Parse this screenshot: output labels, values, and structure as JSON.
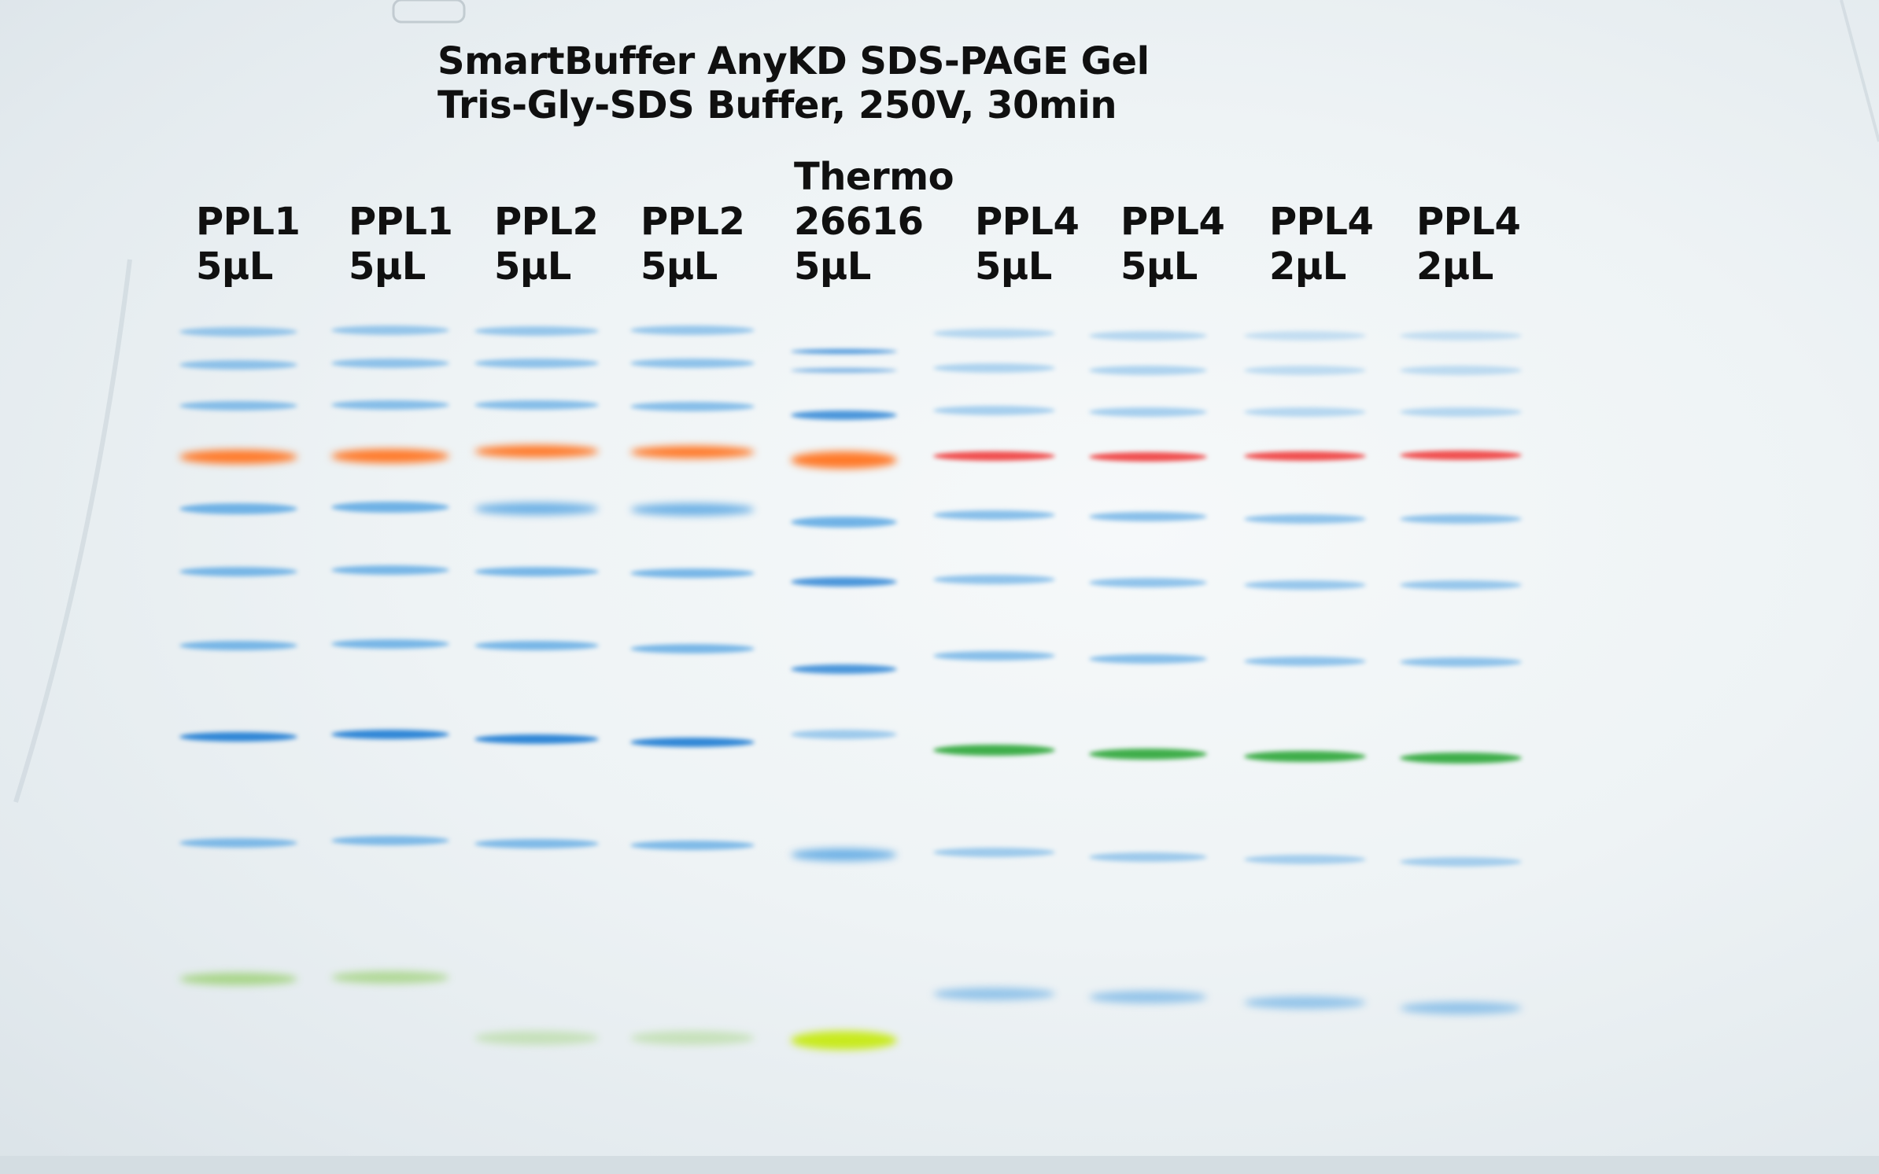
{
  "title": {
    "line1": "SmartBuffer AnyKD SDS-PAGE Gel",
    "line2": "Tris-Gly-SDS Buffer, 250V, 30min"
  },
  "lanes": [
    {
      "name": "PPL1",
      "volume": "5µL"
    },
    {
      "name": "PPL1",
      "volume": "5µL"
    },
    {
      "name": "PPL2",
      "volume": "5µL"
    },
    {
      "name": "PPL2",
      "volume": "5µL"
    },
    {
      "name": "Thermo",
      "catalog": "26616",
      "volume": "5µL"
    },
    {
      "name": "PPL4",
      "volume": "5µL"
    },
    {
      "name": "PPL4",
      "volume": "5µL"
    },
    {
      "name": "PPL4",
      "volume": "2µL"
    },
    {
      "name": "PPL4",
      "volume": "2µL"
    }
  ],
  "colors": {
    "blue_band": "#5aa7e3",
    "dark_blue_band": "#2f86d6",
    "orange_band": "#ff7a2a",
    "red_band": "#f05050",
    "green_band": "#3fae4a",
    "light_green_band": "#9fd27a",
    "yellow_green_band": "#c8ea1e"
  }
}
